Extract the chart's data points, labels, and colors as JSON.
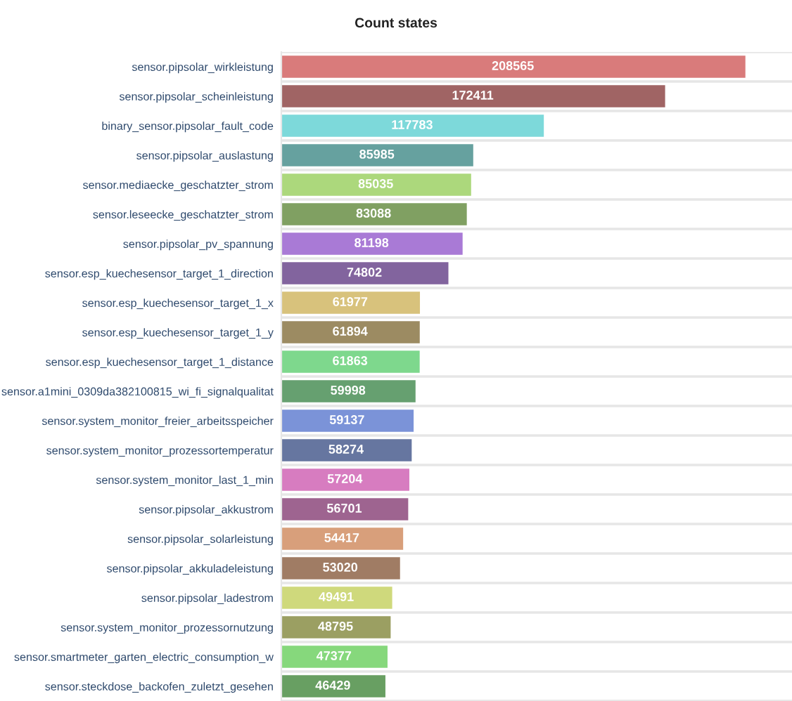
{
  "chart_data": {
    "type": "bar",
    "orientation": "horizontal",
    "title": "Count states",
    "categories": [
      "sensor.pipsolar_wirkleistung",
      "sensor.pipsolar_scheinleistung",
      "binary_sensor.pipsolar_fault_code",
      "sensor.pipsolar_auslastung",
      "sensor.mediaecke_geschatzter_strom",
      "sensor.leseecke_geschatzter_strom",
      "sensor.pipsolar_pv_spannung",
      "sensor.esp_kuechesensor_target_1_direction",
      "sensor.esp_kuechesensor_target_1_x",
      "sensor.esp_kuechesensor_target_1_y",
      "sensor.esp_kuechesensor_target_1_distance",
      "sensor.a1mini_0309da382100815_wi_fi_signalqualitat",
      "sensor.system_monitor_freier_arbeitsspeicher",
      "sensor.system_monitor_prozessortemperatur",
      "sensor.system_monitor_last_1_min",
      "sensor.pipsolar_akkustrom",
      "sensor.pipsolar_solarleistung",
      "sensor.pipsolar_akkuladeleistung",
      "sensor.pipsolar_ladestrom",
      "sensor.system_monitor_prozessornutzung",
      "sensor.smartmeter_garten_electric_consumption_w",
      "sensor.steckdose_backofen_zuletzt_gesehen"
    ],
    "values": [
      208565,
      172411,
      117783,
      85985,
      85035,
      83088,
      81198,
      74802,
      61977,
      61894,
      61863,
      59998,
      59137,
      58274,
      57204,
      56701,
      54417,
      53020,
      49491,
      48795,
      47377,
      46429
    ],
    "colors": [
      "#d97b7b",
      "#a06464",
      "#7dd9da",
      "#66a19f",
      "#acd87c",
      "#80a062",
      "#a97ad6",
      "#82649e",
      "#d8c27c",
      "#9c8b62",
      "#7ed88d",
      "#66a070",
      "#7b93d8",
      "#6676a0",
      "#d77cc0",
      "#9e6490",
      "#d89f7b",
      "#a07c64",
      "#cfd97c",
      "#9b9f62",
      "#86d87c",
      "#689f62"
    ],
    "xlim": [
      0,
      230000
    ],
    "data_labels": true,
    "grid": "y",
    "legend": false
  }
}
